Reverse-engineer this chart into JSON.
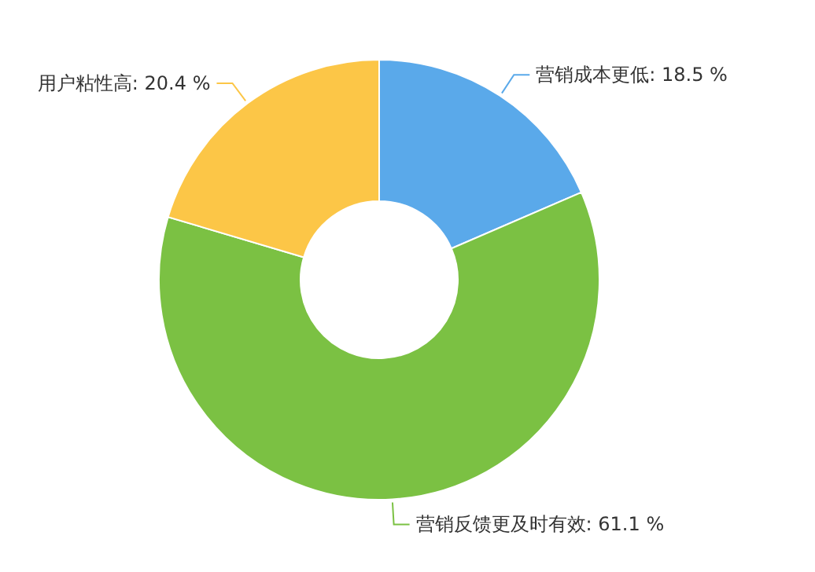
{
  "chart_data": {
    "type": "donut",
    "categories": [
      "营销成本更低",
      "营销反馈更及时有效",
      "用户粘性高"
    ],
    "values": [
      18.5,
      61.1,
      20.4
    ],
    "colors": [
      "#5aa9ea",
      "#7bc143",
      "#fcc647"
    ],
    "value_labels": [
      ": 18.5 %",
      ": 61.1 %",
      ": 20.4 %"
    ]
  }
}
